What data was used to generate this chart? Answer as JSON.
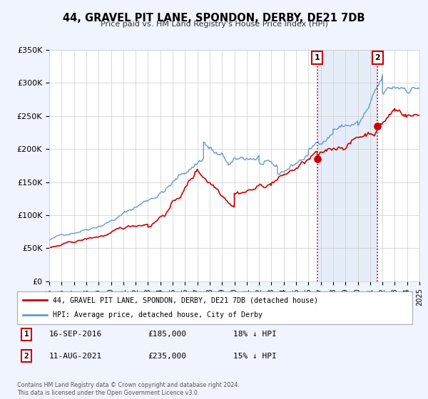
{
  "title": "44, GRAVEL PIT LANE, SPONDON, DERBY, DE21 7DB",
  "subtitle": "Price paid vs. HM Land Registry's House Price Index (HPI)",
  "legend_line1": "44, GRAVEL PIT LANE, SPONDON, DERBY, DE21 7DB (detached house)",
  "legend_line2": "HPI: Average price, detached house, City of Derby",
  "footnote1": "Contains HM Land Registry data © Crown copyright and database right 2024.",
  "footnote2": "This data is licensed under the Open Government Licence v3.0.",
  "sale1_label": "1",
  "sale1_date": "16-SEP-2016",
  "sale1_price": "£185,000",
  "sale1_hpi": "18% ↓ HPI",
  "sale1_year": 2016.71,
  "sale1_value": 185000,
  "sale2_label": "2",
  "sale2_date": "11-AUG-2021",
  "sale2_price": "£235,000",
  "sale2_hpi": "15% ↓ HPI",
  "sale2_year": 2021.61,
  "sale2_value": 235000,
  "red_color": "#cc0000",
  "blue_color": "#6699cc",
  "background_color": "#f0f4ff",
  "plot_bg_color": "#ffffff",
  "ylim": [
    0,
    350000
  ],
  "xlim_start": 1995,
  "xlim_end": 2025,
  "yticks": [
    0,
    50000,
    100000,
    150000,
    200000,
    250000,
    300000,
    350000
  ],
  "ytick_labels": [
    "£0",
    "£50K",
    "£100K",
    "£150K",
    "£200K",
    "£250K",
    "£300K",
    "£350K"
  ]
}
